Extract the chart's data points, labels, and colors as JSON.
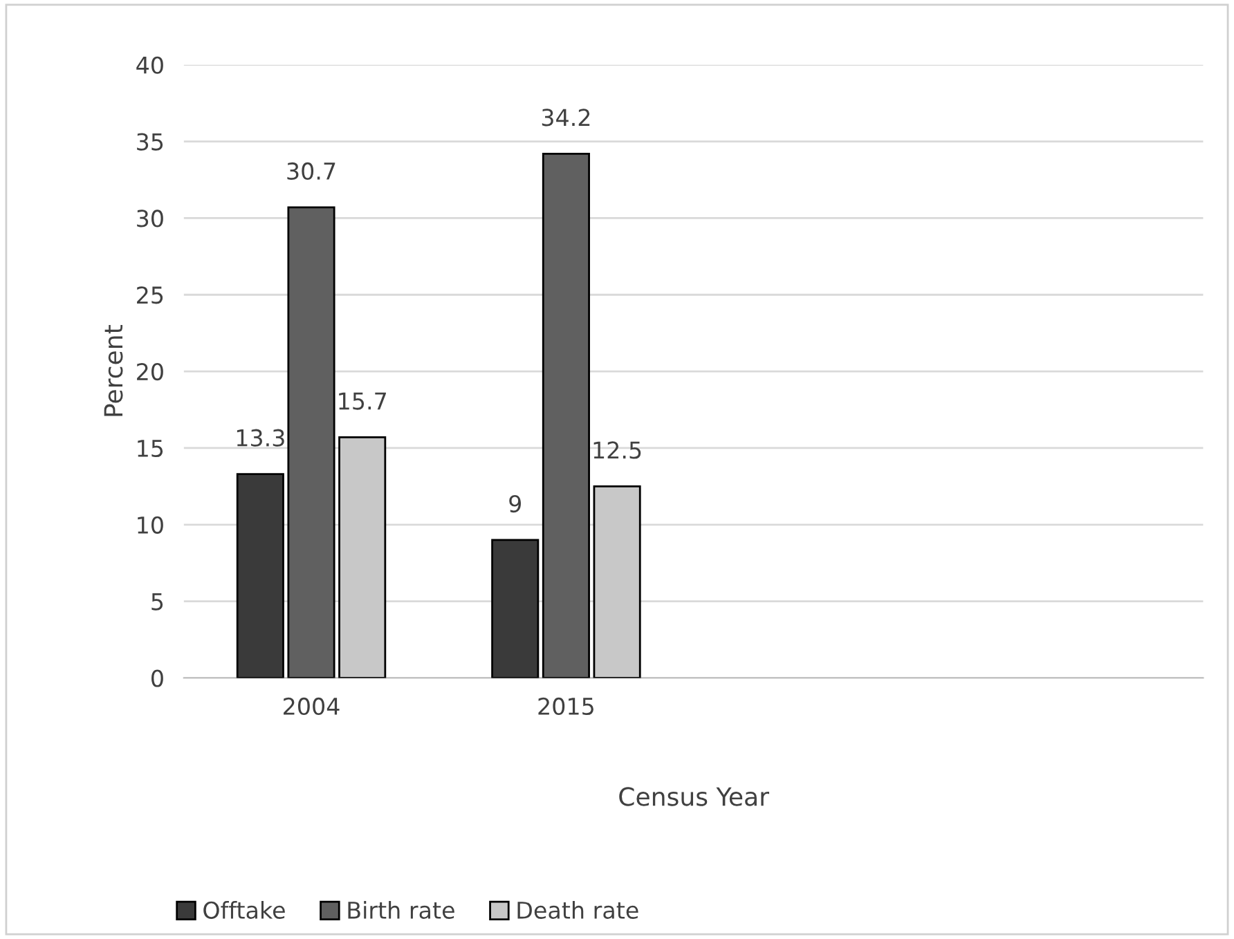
{
  "chart_data": {
    "type": "bar",
    "xlabel": "Census Year",
    "ylabel": "Percent",
    "categories": [
      "2004",
      "2015",
      null,
      null
    ],
    "series": [
      {
        "name": "Offtake",
        "color": "#3a3a3a",
        "values": [
          13.3,
          9,
          null,
          null
        ]
      },
      {
        "name": "Birth rate",
        "color": "#606060",
        "values": [
          30.7,
          34.2,
          null,
          null
        ]
      },
      {
        "name": "Death rate",
        "color": "#c8c8c8",
        "values": [
          15.7,
          12.5,
          null,
          null
        ]
      }
    ],
    "ylim": [
      0,
      40
    ],
    "yticks": [
      0,
      5,
      10,
      15,
      20,
      25,
      30,
      35,
      40
    ],
    "grid": "y",
    "legend": "bottom",
    "data_labels": true
  }
}
